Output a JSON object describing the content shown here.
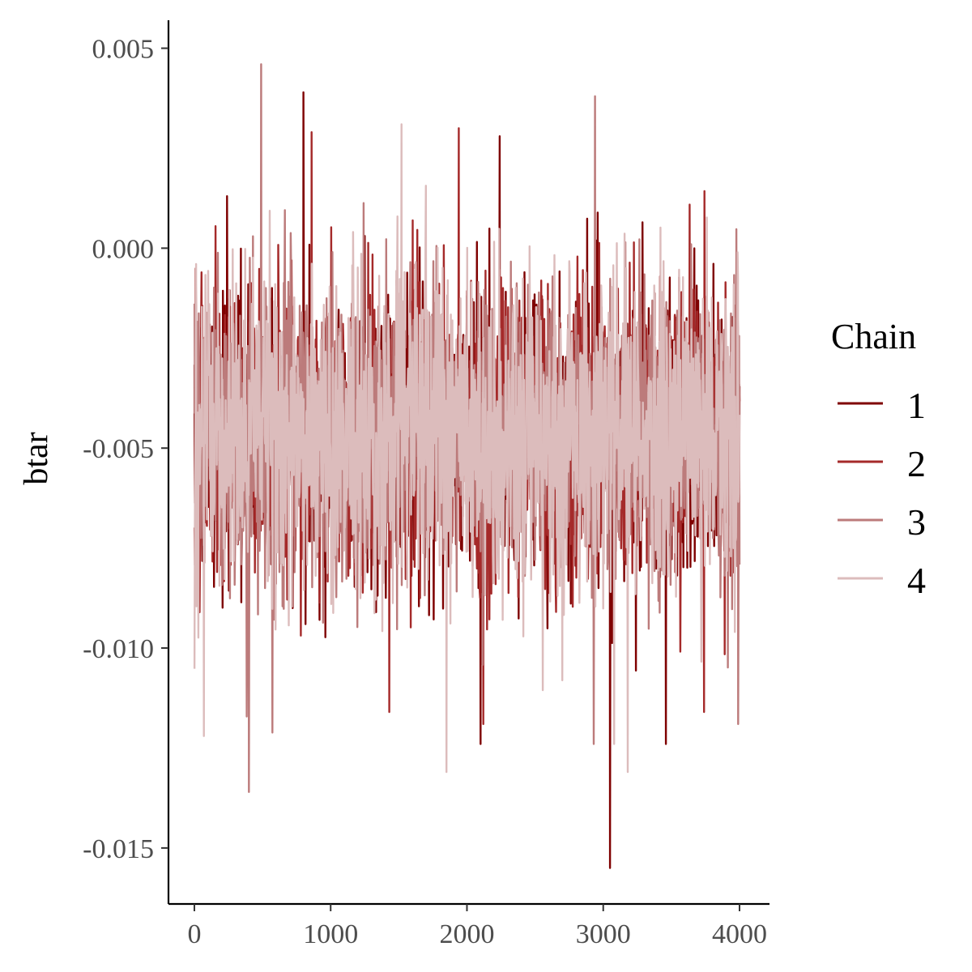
{
  "chart_data": {
    "type": "line",
    "title": "",
    "xlabel": "",
    "ylabel": "btar",
    "xlim": [
      -190,
      4220
    ],
    "ylim": [
      -0.0164,
      0.0057
    ],
    "x_ticks": [
      0,
      1000,
      2000,
      3000,
      4000
    ],
    "x_tick_labels": [
      "0",
      "1000",
      "2000",
      "3000",
      "4000"
    ],
    "y_ticks": [
      0.005,
      0.0,
      -0.005,
      -0.01,
      -0.015
    ],
    "y_tick_labels": [
      "0.005",
      "0.000",
      "-0.005",
      "-0.010",
      "-0.015"
    ],
    "grid": false,
    "legend": {
      "title": "Chain",
      "placement": "right"
    },
    "iterations": {
      "first": 1,
      "last": 4000
    },
    "central_band": {
      "low": -0.0085,
      "high": -0.0003,
      "center": -0.0046
    },
    "series": [
      {
        "name": "1",
        "color": "#7f0000",
        "extremes": [
          {
            "x": 800,
            "y": 0.0039
          },
          {
            "x": 240,
            "y": 0.0013
          },
          {
            "x": 2240,
            "y": 0.0028
          },
          {
            "x": 2100,
            "y": -0.0124
          },
          {
            "x": 3050,
            "y": -0.0155
          },
          {
            "x": 3460,
            "y": -0.0124
          }
        ]
      },
      {
        "name": "2",
        "color": "#a52a2a",
        "extremes": [
          {
            "x": 860,
            "y": 0.0029
          },
          {
            "x": 1940,
            "y": 0.003
          },
          {
            "x": 2120,
            "y": -0.0119
          },
          {
            "x": 1430,
            "y": -0.0116
          },
          {
            "x": 3740,
            "y": -0.0116
          }
        ]
      },
      {
        "name": "3",
        "color": "#bc7b7b",
        "extremes": [
          {
            "x": 490,
            "y": 0.0046
          },
          {
            "x": 2940,
            "y": 0.0038
          },
          {
            "x": 400,
            "y": -0.0136
          },
          {
            "x": 3990,
            "y": -0.0119
          },
          {
            "x": 2930,
            "y": -0.0124
          }
        ]
      },
      {
        "name": "4",
        "color": "#dcbcbc",
        "extremes": [
          {
            "x": 1520,
            "y": 0.0031
          },
          {
            "x": 70,
            "y": -0.0122
          },
          {
            "x": 1850,
            "y": -0.0131
          },
          {
            "x": 3180,
            "y": -0.0131
          },
          {
            "x": 3080,
            "y": -0.0124
          }
        ]
      }
    ]
  }
}
